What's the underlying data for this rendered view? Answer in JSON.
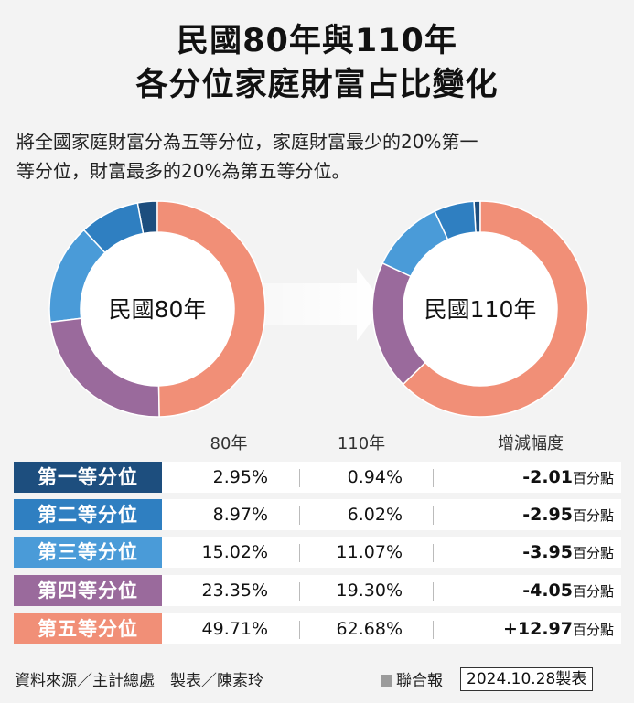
{
  "title_line1": "民國80年與110年",
  "title_line2": "各分位家庭財富占比變化",
  "desc_line1": "將全國家庭財富分為五等分位，家庭財富最少的20%第一",
  "desc_line2": "等分位，財富最多的20%為第五等分位。",
  "colors": [
    "#1d4e7e",
    "#2f7fc1",
    "#4a9bd8",
    "#9a6a9c",
    "#f18f77"
  ],
  "chart_data": {
    "type": "pie",
    "series": [
      {
        "name": "民國80年",
        "values": [
          2.95,
          8.97,
          15.02,
          23.35,
          49.71
        ]
      },
      {
        "name": "民國110年",
        "values": [
          0.94,
          6.02,
          11.07,
          19.3,
          62.68
        ]
      }
    ],
    "categories": [
      "第一等分位",
      "第二等分位",
      "第三等分位",
      "第四等分位",
      "第五等分位"
    ]
  },
  "table": {
    "headers": [
      "80年",
      "110年",
      "增減幅度"
    ],
    "rows": [
      {
        "label": "第一等分位",
        "v80": "2.95%",
        "v110": "0.94%",
        "change": "-2.01",
        "unit": "百分點"
      },
      {
        "label": "第二等分位",
        "v80": "8.97%",
        "v110": "6.02%",
        "change": "-2.95",
        "unit": "百分點"
      },
      {
        "label": "第三等分位",
        "v80": "15.02%",
        "v110": "11.07%",
        "change": "-3.95",
        "unit": "百分點"
      },
      {
        "label": "第四等分位",
        "v80": "23.35%",
        "v110": "19.30%",
        "change": "-4.05",
        "unit": "百分點"
      },
      {
        "label": "第五等分位",
        "v80": "49.71%",
        "v110": "62.68%",
        "change": "+12.97",
        "unit": "百分點"
      }
    ]
  },
  "footer": {
    "source": "資料來源／主計總處　製表／陳素玲",
    "publisher": "聯合報",
    "date": "2024.10.28製表"
  }
}
